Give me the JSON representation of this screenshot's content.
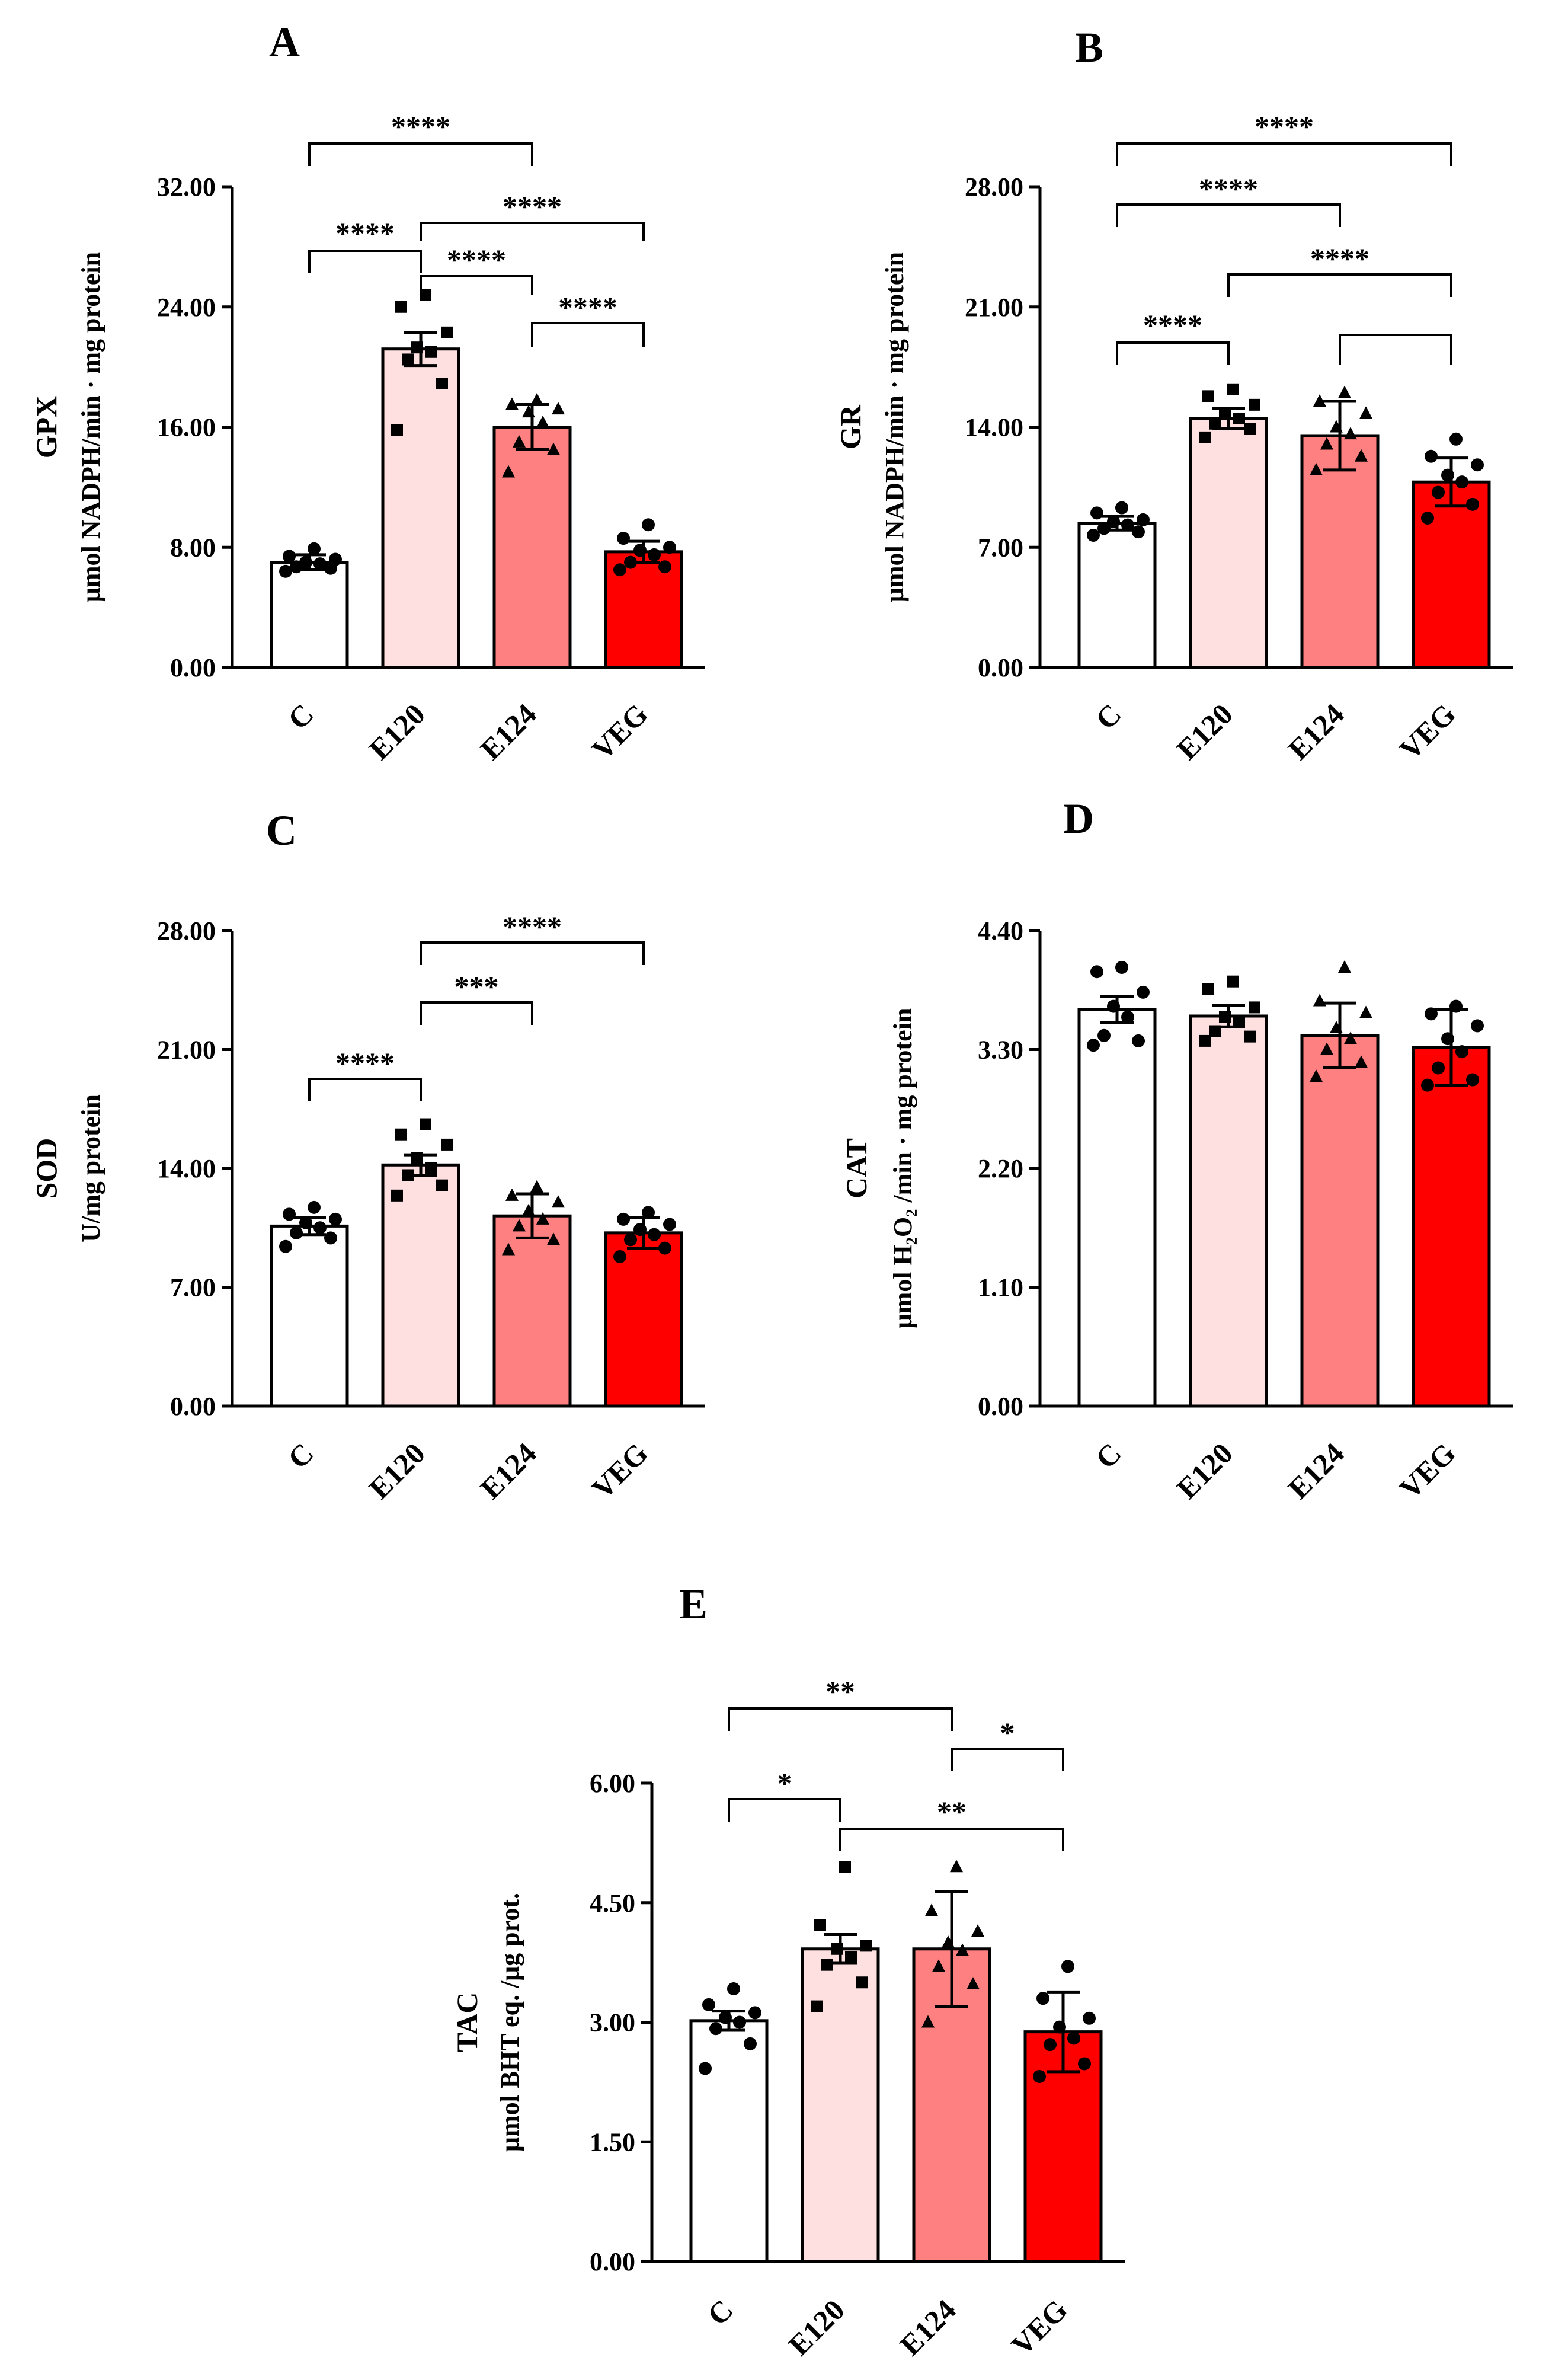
{
  "chart_data": [
    {
      "panel": "A",
      "type": "bar",
      "categories": [
        "C",
        "E120",
        "E124",
        "VEG"
      ],
      "values": [
        7.0,
        21.2,
        16.0,
        7.7
      ],
      "errors": [
        0.5,
        1.1,
        1.5,
        0.7
      ],
      "points": [
        [
          6.4,
          6.6,
          6.7,
          6.9,
          7.0,
          7.2,
          7.4,
          7.9
        ],
        [
          15.8,
          18.9,
          20.5,
          21.0,
          21.3,
          22.3,
          24.0,
          24.8
        ],
        [
          13.0,
          14.5,
          15.0,
          16.3,
          17.0,
          17.2,
          17.5,
          17.8
        ],
        [
          6.5,
          6.7,
          7.0,
          7.5,
          7.8,
          8.0,
          8.6,
          9.5
        ]
      ],
      "markers": [
        "circle",
        "square",
        "triangle",
        "circle"
      ],
      "ylabel": "GPX",
      "ylabel2": "μmol NADPH/min · mg protein",
      "ylim": [
        0,
        32
      ],
      "ticks": [
        "0.00",
        "8.00",
        "16.00",
        "24.00",
        "32.00"
      ],
      "comparisons": [
        {
          "from": 0,
          "to": 2,
          "label": "****"
        },
        {
          "from": 1,
          "to": 3,
          "label": "****"
        },
        {
          "from": 0,
          "to": 1,
          "label": "****"
        },
        {
          "from": 1,
          "to": 2,
          "label": "****"
        },
        {
          "from": 2,
          "to": 3,
          "label": "****"
        }
      ]
    },
    {
      "panel": "B",
      "type": "bar",
      "categories": [
        "C",
        "E120",
        "E124",
        "VEG"
      ],
      "values": [
        8.4,
        14.5,
        13.5,
        10.8
      ],
      "errors": [
        0.4,
        0.6,
        2.0,
        1.4
      ],
      "points": [
        [
          7.7,
          7.9,
          8.1,
          8.3,
          8.5,
          8.6,
          9.0,
          9.3
        ],
        [
          13.4,
          13.9,
          14.2,
          14.5,
          14.8,
          15.3,
          15.8,
          16.2
        ],
        [
          11.5,
          12.3,
          13.0,
          13.6,
          14.0,
          14.8,
          15.5,
          16.0
        ],
        [
          8.7,
          9.5,
          10.2,
          10.8,
          11.2,
          11.8,
          12.3,
          13.3
        ]
      ],
      "markers": [
        "circle",
        "square",
        "triangle",
        "circle"
      ],
      "ylabel": "GR",
      "ylabel2": "μmol NADPH/min · mg protein",
      "ylim": [
        0,
        28
      ],
      "ticks": [
        "0.00",
        "7.00",
        "14.00",
        "21.00",
        "28.00"
      ],
      "comparisons": [
        {
          "from": 0,
          "to": 3,
          "label": "****"
        },
        {
          "from": 0,
          "to": 2,
          "label": "****"
        },
        {
          "from": 1,
          "to": 3,
          "label": "****"
        },
        {
          "from": 0,
          "to": 1,
          "label": "****"
        },
        {
          "from": 2,
          "to": 3,
          "label": ""
        }
      ]
    },
    {
      "panel": "C",
      "type": "bar",
      "categories": [
        "C",
        "E120",
        "E124",
        "VEG"
      ],
      "values": [
        10.6,
        14.2,
        11.2,
        10.2
      ],
      "errors": [
        0.5,
        0.6,
        1.3,
        0.9
      ],
      "points": [
        [
          9.4,
          9.9,
          10.2,
          10.5,
          10.8,
          11.0,
          11.3,
          11.7
        ],
        [
          12.4,
          13.0,
          13.6,
          14.0,
          14.6,
          15.4,
          16.0,
          16.6
        ],
        [
          9.2,
          9.8,
          10.6,
          11.0,
          11.5,
          12.0,
          12.4,
          12.9
        ],
        [
          8.8,
          9.3,
          9.8,
          10.1,
          10.4,
          10.7,
          11.0,
          11.4
        ]
      ],
      "markers": [
        "circle",
        "square",
        "triangle",
        "circle"
      ],
      "ylabel": "SOD",
      "ylabel2": "U/mg protein",
      "ylim": [
        0,
        28
      ],
      "ticks": [
        "0.00",
        "7.00",
        "14.00",
        "21.00",
        "28.00"
      ],
      "comparisons": [
        {
          "from": 1,
          "to": 3,
          "label": "****"
        },
        {
          "from": 1,
          "to": 2,
          "label": "***"
        },
        {
          "from": 0,
          "to": 1,
          "label": "****"
        }
      ]
    },
    {
      "panel": "D",
      "type": "bar",
      "categories": [
        "C",
        "E120",
        "E124",
        "VEG"
      ],
      "values": [
        3.67,
        3.61,
        3.43,
        3.32
      ],
      "errors": [
        0.12,
        0.1,
        0.3,
        0.35
      ],
      "points": [
        [
          3.34,
          3.38,
          3.43,
          3.6,
          3.7,
          3.83,
          4.02,
          4.06
        ],
        [
          3.38,
          3.42,
          3.47,
          3.55,
          3.6,
          3.69,
          3.86,
          3.93
        ],
        [
          3.05,
          3.18,
          3.3,
          3.4,
          3.5,
          3.64,
          3.75,
          4.06
        ],
        [
          2.97,
          3.02,
          3.13,
          3.28,
          3.4,
          3.52,
          3.63,
          3.7
        ]
      ],
      "markers": [
        "circle",
        "square",
        "triangle",
        "circle"
      ],
      "ylabel": "CAT",
      "ylabel2": "μmol H₂O₂ /min · mg protein",
      "ylim": [
        0,
        4.4
      ],
      "ticks": [
        "0.00",
        "1.10",
        "2.20",
        "3.30",
        "4.40"
      ],
      "comparisons": []
    },
    {
      "panel": "E",
      "type": "bar",
      "categories": [
        "C",
        "E120",
        "E124",
        "VEG"
      ],
      "values": [
        3.02,
        3.92,
        3.92,
        2.88
      ],
      "errors": [
        0.12,
        0.18,
        0.72,
        0.5
      ],
      "points": [
        [
          2.42,
          2.73,
          2.92,
          3.0,
          3.06,
          3.12,
          3.22,
          3.42
        ],
        [
          3.2,
          3.5,
          3.72,
          3.82,
          3.92,
          3.96,
          4.22,
          4.95
        ],
        [
          3.0,
          3.48,
          3.7,
          3.9,
          4.0,
          4.14,
          4.4,
          4.95
        ],
        [
          2.32,
          2.48,
          2.72,
          2.8,
          2.94,
          3.05,
          3.3,
          3.7
        ]
      ],
      "markers": [
        "circle",
        "square",
        "triangle",
        "circle"
      ],
      "ylabel": "TAC",
      "ylabel2": "μmol BHT eq. /μg prot.",
      "ylim": [
        0,
        6
      ],
      "ticks": [
        "0.00",
        "1.50",
        "3.00",
        "4.50",
        "6.00"
      ],
      "comparisons": [
        {
          "from": 0,
          "to": 2,
          "label": "**"
        },
        {
          "from": 2,
          "to": 3,
          "label": "*"
        },
        {
          "from": 0,
          "to": 1,
          "label": "*"
        },
        {
          "from": 1,
          "to": 3,
          "label": "**"
        }
      ]
    }
  ],
  "style": {
    "bar_colors": [
      "#ffffff",
      "#ffe0e0",
      "#ff8080",
      "#ff0000"
    ],
    "stroke_color": "#000000"
  }
}
